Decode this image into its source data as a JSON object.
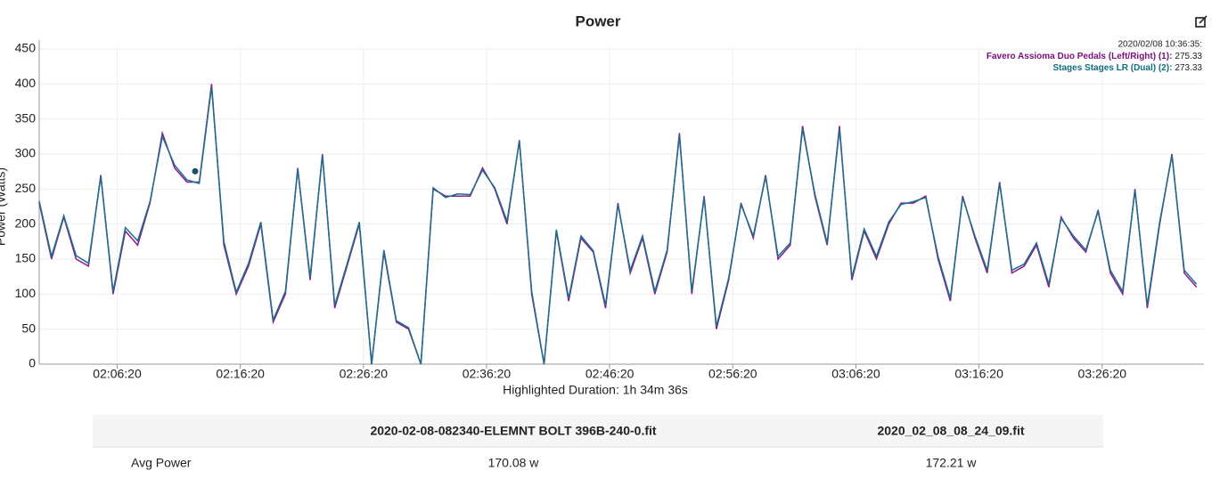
{
  "chart_data": {
    "type": "line",
    "title": "Power",
    "y_label": "Power (Watts)",
    "x_label": "Highlighted Duration: 1h 34m 36s",
    "xlim": [
      "02:00:00",
      "03:34:36"
    ],
    "xticks": [
      "02:06:20",
      "02:16:20",
      "02:26:20",
      "02:36:20",
      "02:46:20",
      "02:56:20",
      "03:06:20",
      "03:16:20",
      "03:26:20"
    ],
    "ylim": [
      0,
      450
    ],
    "yticks": [
      0,
      50,
      100,
      150,
      200,
      250,
      300,
      350,
      400,
      450
    ],
    "grid": true,
    "x": [
      "02:00:00",
      "02:01:00",
      "02:02:00",
      "02:03:00",
      "02:04:00",
      "02:05:00",
      "02:06:00",
      "02:07:00",
      "02:08:00",
      "02:09:00",
      "02:10:00",
      "02:11:00",
      "02:12:00",
      "02:13:00",
      "02:14:00",
      "02:15:00",
      "02:16:00",
      "02:17:00",
      "02:18:00",
      "02:19:00",
      "02:20:00",
      "02:21:00",
      "02:22:00",
      "02:23:00",
      "02:24:00",
      "02:25:00",
      "02:26:00",
      "02:27:00",
      "02:28:00",
      "02:29:00",
      "02:30:00",
      "02:31:00",
      "02:32:00",
      "02:33:00",
      "02:34:00",
      "02:35:00",
      "02:36:00",
      "02:37:00",
      "02:38:00",
      "02:39:00",
      "02:40:00",
      "02:41:00",
      "02:42:00",
      "02:43:00",
      "02:44:00",
      "02:45:00",
      "02:46:00",
      "02:47:00",
      "02:48:00",
      "02:49:00",
      "02:50:00",
      "02:51:00",
      "02:52:00",
      "02:53:00",
      "02:54:00",
      "02:55:00",
      "02:56:00",
      "02:57:00",
      "02:58:00",
      "02:59:00",
      "03:00:00",
      "03:01:00",
      "03:02:00",
      "03:03:00",
      "03:04:00",
      "03:05:00",
      "03:06:00",
      "03:07:00",
      "03:08:00",
      "03:09:00",
      "03:10:00",
      "03:11:00",
      "03:12:00",
      "03:13:00",
      "03:14:00",
      "03:15:00",
      "03:16:00",
      "03:17:00",
      "03:18:00",
      "03:19:00",
      "03:20:00",
      "03:21:00",
      "03:22:00",
      "03:23:00",
      "03:24:00",
      "03:25:00",
      "03:26:00",
      "03:27:00",
      "03:28:00",
      "03:29:00",
      "03:30:00",
      "03:31:00",
      "03:32:00",
      "03:33:00",
      "03:34:00"
    ],
    "series": [
      {
        "name": "Favero Assioma Duo Pedals (Left/Right) (1)",
        "color": "#8e1a8e",
        "values": [
          230,
          150,
          210,
          150,
          140,
          270,
          100,
          190,
          170,
          230,
          330,
          280,
          260,
          260,
          400,
          170,
          100,
          140,
          200,
          60,
          100,
          280,
          120,
          300,
          80,
          140,
          200,
          0,
          160,
          60,
          50,
          0,
          250,
          240,
          240,
          240,
          280,
          250,
          200,
          320,
          100,
          0,
          190,
          90,
          180,
          160,
          80,
          230,
          130,
          180,
          100,
          160,
          330,
          100,
          240,
          50,
          120,
          230,
          180,
          270,
          150,
          170,
          340,
          240,
          170,
          340,
          120,
          190,
          150,
          200,
          230,
          230,
          240,
          150,
          90,
          240,
          180,
          130,
          260,
          130,
          140,
          170,
          110,
          210,
          180,
          160,
          220,
          130,
          100,
          250,
          80,
          200,
          300,
          130,
          110
        ]
      },
      {
        "name": "Stages Stages LR (Dual) (2)",
        "color": "#1b6f8a",
        "values": [
          233,
          154,
          212,
          155,
          144,
          268,
          104,
          195,
          176,
          232,
          325,
          284,
          263,
          258,
          396,
          175,
          103,
          144,
          203,
          63,
          104,
          278,
          124,
          298,
          84,
          143,
          203,
          0,
          163,
          62,
          52,
          0,
          252,
          238,
          243,
          242,
          277,
          252,
          204,
          318,
          104,
          0,
          192,
          94,
          183,
          162,
          84,
          228,
          134,
          183,
          104,
          163,
          326,
          104,
          238,
          54,
          123,
          228,
          183,
          268,
          154,
          173,
          336,
          243,
          173,
          336,
          124,
          193,
          154,
          203,
          228,
          232,
          238,
          154,
          94,
          238,
          183,
          134,
          258,
          134,
          143,
          173,
          114,
          208,
          183,
          163,
          218,
          134,
          104,
          248,
          84,
          203,
          298,
          134,
          114
        ]
      }
    ],
    "tooltip": {
      "time": "2020/02/08 10:36:35:",
      "x": "02:12:40",
      "items": [
        {
          "label": "Favero Assioma Duo Pedals (Left/Right) (1):",
          "value": 275.33,
          "color": "#7a0f80"
        },
        {
          "label": "Stages Stages LR (Dual) (2):",
          "value": 273.33,
          "color": "#0f6f80"
        }
      ]
    }
  },
  "table": {
    "columns": [
      "2020-02-08-082340-ELEMNT BOLT 396B-240-0.fit",
      "2020_02_08_08_24_09.fit"
    ],
    "rows": [
      {
        "label": "Avg Power",
        "values": [
          "170.08 w",
          "172.21 w"
        ]
      }
    ]
  }
}
